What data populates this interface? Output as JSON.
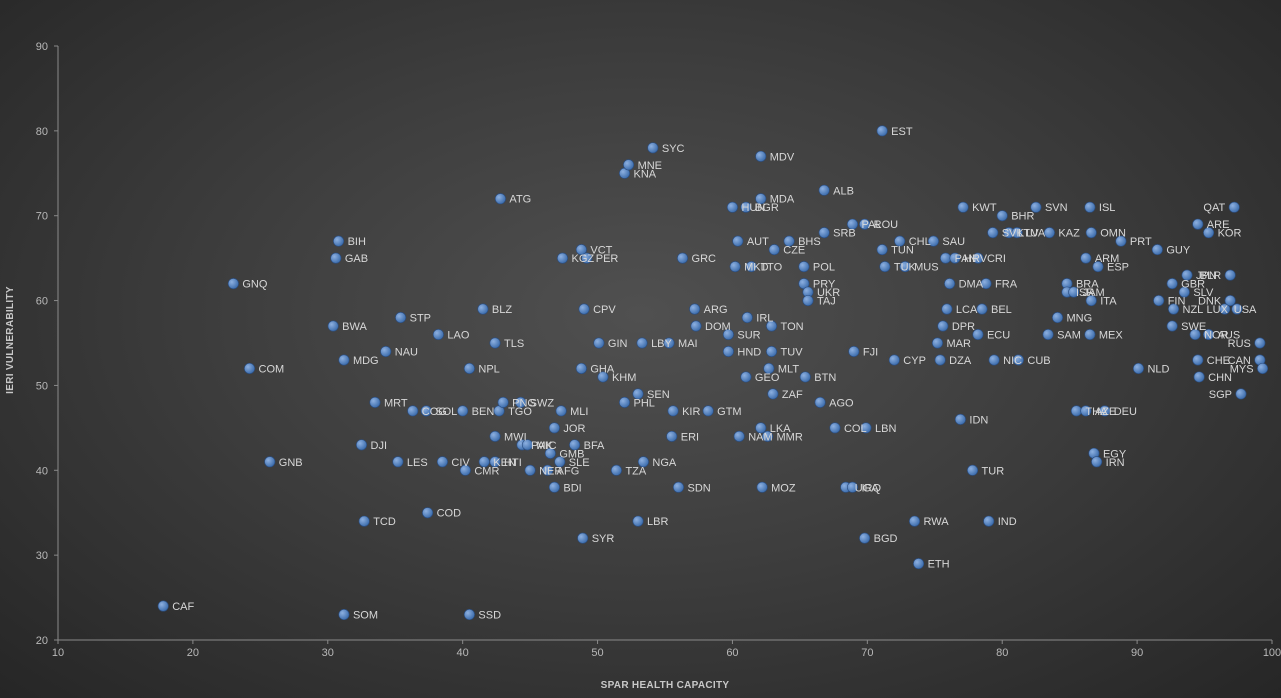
{
  "chart_data": {
    "type": "scatter",
    "title": "",
    "xlabel": "SPAR HEALTH CAPACITY",
    "ylabel": "IERI VULNERABILITY",
    "xlim": [
      10,
      100
    ],
    "ylim": [
      20,
      90
    ],
    "xticks": [
      10,
      20,
      30,
      40,
      50,
      60,
      70,
      80,
      90,
      100
    ],
    "yticks": [
      20,
      30,
      40,
      50,
      60,
      70,
      80,
      90
    ],
    "grid": false,
    "legend": "none",
    "colors": {
      "marker": "#4f81bd",
      "marker_highlight": "#8db0e0",
      "label": "#d8d8d8",
      "axis": "#8a8a8a"
    },
    "points": [
      {
        "label": "CAF",
        "x": 17.8,
        "y": 24
      },
      {
        "label": "SOM",
        "x": 31.2,
        "y": 23
      },
      {
        "label": "SSD",
        "x": 40.5,
        "y": 23
      },
      {
        "label": "GNQ",
        "x": 23,
        "y": 62
      },
      {
        "label": "COM",
        "x": 24.2,
        "y": 52
      },
      {
        "label": "GNB",
        "x": 25.7,
        "y": 41
      },
      {
        "label": "BIH",
        "x": 30.8,
        "y": 67
      },
      {
        "label": "GAB",
        "x": 30.6,
        "y": 65
      },
      {
        "label": "BWA",
        "x": 30.4,
        "y": 57
      },
      {
        "label": "MDG",
        "x": 31.2,
        "y": 53
      },
      {
        "label": "TCD",
        "x": 32.7,
        "y": 34
      },
      {
        "label": "DJI",
        "x": 32.5,
        "y": 43
      },
      {
        "label": "MRT",
        "x": 33.5,
        "y": 48
      },
      {
        "label": "STP",
        "x": 35.4,
        "y": 58
      },
      {
        "label": "NAU",
        "x": 34.3,
        "y": 54
      },
      {
        "label": "COG",
        "x": 36.3,
        "y": 47
      },
      {
        "label": "LES",
        "x": 35.2,
        "y": 41
      },
      {
        "label": "SOL",
        "x": 37.3,
        "y": 47
      },
      {
        "label": "COD",
        "x": 37.4,
        "y": 35
      },
      {
        "label": "LAO",
        "x": 38.2,
        "y": 56
      },
      {
        "label": "CIV",
        "x": 38.5,
        "y": 41
      },
      {
        "label": "NPL",
        "x": 40.5,
        "y": 52
      },
      {
        "label": "BEN",
        "x": 40,
        "y": 47
      },
      {
        "label": "CMR",
        "x": 40.2,
        "y": 40
      },
      {
        "label": "BLZ",
        "x": 41.5,
        "y": 59
      },
      {
        "label": "TLS",
        "x": 42.4,
        "y": 55
      },
      {
        "label": "KEN",
        "x": 41.6,
        "y": 41
      },
      {
        "label": "HTI",
        "x": 42.4,
        "y": 41
      },
      {
        "label": "MWI",
        "x": 42.4,
        "y": 44
      },
      {
        "label": "TGO",
        "x": 42.7,
        "y": 47
      },
      {
        "label": "PNG",
        "x": 43,
        "y": 48
      },
      {
        "label": "ATG",
        "x": 42.8,
        "y": 72
      },
      {
        "label": "SWZ",
        "x": 44.3,
        "y": 48
      },
      {
        "label": "PAK",
        "x": 44.4,
        "y": 43
      },
      {
        "label": "MIC",
        "x": 44.8,
        "y": 43
      },
      {
        "label": "NER",
        "x": 45,
        "y": 40
      },
      {
        "label": "GMB",
        "x": 46.5,
        "y": 42
      },
      {
        "label": "AFG",
        "x": 46.3,
        "y": 40
      },
      {
        "label": "SLE",
        "x": 47.2,
        "y": 41
      },
      {
        "label": "BDI",
        "x": 46.8,
        "y": 38
      },
      {
        "label": "JOR",
        "x": 46.8,
        "y": 45
      },
      {
        "label": "MLI",
        "x": 47.3,
        "y": 47
      },
      {
        "label": "GHA",
        "x": 48.8,
        "y": 52
      },
      {
        "label": "BFA",
        "x": 48.3,
        "y": 43
      },
      {
        "label": "SYR",
        "x": 48.9,
        "y": 32
      },
      {
        "label": "KGZ",
        "x": 47.4,
        "y": 65
      },
      {
        "label": "VCT",
        "x": 48.8,
        "y": 66
      },
      {
        "label": "PER",
        "x": 49.2,
        "y": 65
      },
      {
        "label": "CPV",
        "x": 49,
        "y": 59
      },
      {
        "label": "GIN",
        "x": 50.1,
        "y": 55
      },
      {
        "label": "KHM",
        "x": 50.4,
        "y": 51
      },
      {
        "label": "TZA",
        "x": 51.4,
        "y": 40
      },
      {
        "label": "PHL",
        "x": 52,
        "y": 48
      },
      {
        "label": "SEN",
        "x": 53,
        "y": 49
      },
      {
        "label": "LBR",
        "x": 53,
        "y": 34
      },
      {
        "label": "NGA",
        "x": 53.4,
        "y": 41
      },
      {
        "label": "LBY",
        "x": 53.3,
        "y": 55
      },
      {
        "label": "MAI",
        "x": 55.3,
        "y": 55
      },
      {
        "label": "KNA",
        "x": 52,
        "y": 75
      },
      {
        "label": "MNE",
        "x": 52.3,
        "y": 76
      },
      {
        "label": "SYC",
        "x": 54.1,
        "y": 78
      },
      {
        "label": "GRC",
        "x": 56.3,
        "y": 65
      },
      {
        "label": "KIR",
        "x": 55.6,
        "y": 47
      },
      {
        "label": "ERI",
        "x": 55.5,
        "y": 44
      },
      {
        "label": "SDN",
        "x": 56,
        "y": 38
      },
      {
        "label": "ARG",
        "x": 57.2,
        "y": 59
      },
      {
        "label": "DOM",
        "x": 57.3,
        "y": 57
      },
      {
        "label": "GTM",
        "x": 58.2,
        "y": 47
      },
      {
        "label": "SUR",
        "x": 59.7,
        "y": 56
      },
      {
        "label": "HND",
        "x": 59.7,
        "y": 54
      },
      {
        "label": "NAM",
        "x": 60.5,
        "y": 44
      },
      {
        "label": "GEO",
        "x": 61,
        "y": 51
      },
      {
        "label": "IRL",
        "x": 61.1,
        "y": 58
      },
      {
        "label": "HUN",
        "x": 60,
        "y": 71
      },
      {
        "label": "BGR",
        "x": 61,
        "y": 71
      },
      {
        "label": "AUT",
        "x": 60.4,
        "y": 67
      },
      {
        "label": "MKD",
        "x": 60.2,
        "y": 64
      },
      {
        "label": "TTO",
        "x": 61.4,
        "y": 64
      },
      {
        "label": "MDV",
        "x": 62.1,
        "y": 77
      },
      {
        "label": "MDA",
        "x": 62.1,
        "y": 72
      },
      {
        "label": "MOZ",
        "x": 62.2,
        "y": 38
      },
      {
        "label": "LKA",
        "x": 62.1,
        "y": 45
      },
      {
        "label": "MMR",
        "x": 62.6,
        "y": 44
      },
      {
        "label": "ZAF",
        "x": 63,
        "y": 49
      },
      {
        "label": "MLT",
        "x": 62.7,
        "y": 52
      },
      {
        "label": "TUV",
        "x": 62.9,
        "y": 54
      },
      {
        "label": "TON",
        "x": 62.9,
        "y": 57
      },
      {
        "label": "CZE",
        "x": 63.1,
        "y": 66
      },
      {
        "label": "BHS",
        "x": 64.2,
        "y": 67
      },
      {
        "label": "POL",
        "x": 65.3,
        "y": 64
      },
      {
        "label": "PRY",
        "x": 65.3,
        "y": 62
      },
      {
        "label": "UKR",
        "x": 65.6,
        "y": 61
      },
      {
        "label": "TAJ",
        "x": 65.6,
        "y": 60
      },
      {
        "label": "BTN",
        "x": 65.4,
        "y": 51
      },
      {
        "label": "AGO",
        "x": 66.5,
        "y": 48
      },
      {
        "label": "ALB",
        "x": 66.8,
        "y": 73
      },
      {
        "label": "SRB",
        "x": 66.8,
        "y": 68
      },
      {
        "label": "PAL",
        "x": 68.9,
        "y": 69
      },
      {
        "label": "ROU",
        "x": 69.8,
        "y": 69
      },
      {
        "label": "COL",
        "x": 67.6,
        "y": 45
      },
      {
        "label": "UGA",
        "x": 68.4,
        "y": 38
      },
      {
        "label": "IRQ",
        "x": 68.9,
        "y": 38
      },
      {
        "label": "FJI",
        "x": 69,
        "y": 54
      },
      {
        "label": "LBN",
        "x": 69.9,
        "y": 45
      },
      {
        "label": "BGD",
        "x": 69.8,
        "y": 32
      },
      {
        "label": "TUK",
        "x": 71.3,
        "y": 64
      },
      {
        "label": "TUN",
        "x": 71.1,
        "y": 66
      },
      {
        "label": "EST",
        "x": 71.1,
        "y": 80
      },
      {
        "label": "CHL",
        "x": 72.4,
        "y": 67
      },
      {
        "label": "CYP",
        "x": 72,
        "y": 53
      },
      {
        "label": "MUS",
        "x": 72.8,
        "y": 64
      },
      {
        "label": "RWA",
        "x": 73.5,
        "y": 34
      },
      {
        "label": "ETH",
        "x": 73.8,
        "y": 29
      },
      {
        "label": "SAU",
        "x": 74.9,
        "y": 67
      },
      {
        "label": "PAN",
        "x": 75.8,
        "y": 65
      },
      {
        "label": "DMA",
        "x": 76.1,
        "y": 62
      },
      {
        "label": "DPR",
        "x": 75.6,
        "y": 57
      },
      {
        "label": "LCA",
        "x": 75.9,
        "y": 59
      },
      {
        "label": "DZA",
        "x": 75.4,
        "y": 53
      },
      {
        "label": "MAR",
        "x": 75.2,
        "y": 55
      },
      {
        "label": "HRV",
        "x": 76.5,
        "y": 65
      },
      {
        "label": "IDN",
        "x": 76.9,
        "y": 46
      },
      {
        "label": "KWT",
        "x": 77.1,
        "y": 71
      },
      {
        "label": "TUR",
        "x": 77.8,
        "y": 40
      },
      {
        "label": "CRI",
        "x": 78.2,
        "y": 65
      },
      {
        "label": "ECU",
        "x": 78.2,
        "y": 56
      },
      {
        "label": "BEL",
        "x": 78.5,
        "y": 59
      },
      {
        "label": "FRA",
        "x": 78.8,
        "y": 62
      },
      {
        "label": "SVK",
        "x": 79.3,
        "y": 68
      },
      {
        "label": "IND",
        "x": 79,
        "y": 34
      },
      {
        "label": "BHR",
        "x": 80,
        "y": 70
      },
      {
        "label": "NIC",
        "x": 79.4,
        "y": 53
      },
      {
        "label": "LTU",
        "x": 80.5,
        "y": 68
      },
      {
        "label": "LVA",
        "x": 81.1,
        "y": 68
      },
      {
        "label": "CUB",
        "x": 81.2,
        "y": 53
      },
      {
        "label": "SVN",
        "x": 82.5,
        "y": 71
      },
      {
        "label": "KAZ",
        "x": 83.5,
        "y": 68
      },
      {
        "label": "SAM",
        "x": 83.4,
        "y": 56
      },
      {
        "label": "MNG",
        "x": 84.1,
        "y": 58
      },
      {
        "label": "BRA",
        "x": 84.8,
        "y": 62
      },
      {
        "label": "ISR",
        "x": 84.8,
        "y": 61
      },
      {
        "label": "JAM",
        "x": 85.3,
        "y": 61
      },
      {
        "label": "THA",
        "x": 85.5,
        "y": 47
      },
      {
        "label": "AZE",
        "x": 86.2,
        "y": 47
      },
      {
        "label": "ARM",
        "x": 86.2,
        "y": 65
      },
      {
        "label": "MEX",
        "x": 86.5,
        "y": 56
      },
      {
        "label": "ISL",
        "x": 86.5,
        "y": 71
      },
      {
        "label": "OMN",
        "x": 86.6,
        "y": 68
      },
      {
        "label": "ITA",
        "x": 86.6,
        "y": 60
      },
      {
        "label": "ESP",
        "x": 87.1,
        "y": 64
      },
      {
        "label": "EGY",
        "x": 86.8,
        "y": 42
      },
      {
        "label": "IRN",
        "x": 87,
        "y": 41
      },
      {
        "label": "DEU",
        "x": 87.6,
        "y": 47
      },
      {
        "label": "PRT",
        "x": 88.8,
        "y": 67
      },
      {
        "label": "NLD",
        "x": 90.1,
        "y": 52
      },
      {
        "label": "GUY",
        "x": 91.5,
        "y": 66
      },
      {
        "label": "FIN",
        "x": 91.6,
        "y": 60
      },
      {
        "label": "GBR",
        "x": 92.6,
        "y": 62
      },
      {
        "label": "NZL",
        "x": 92.7,
        "y": 59
      },
      {
        "label": "SWE",
        "x": 92.6,
        "y": 57
      },
      {
        "label": "SLV",
        "x": 93.5,
        "y": 61
      },
      {
        "label": "JPN",
        "x": 93.7,
        "y": 63
      },
      {
        "label": "NOR",
        "x": 94.3,
        "y": 56
      },
      {
        "label": "CHE",
        "x": 94.5,
        "y": 53
      },
      {
        "label": "CHN",
        "x": 94.6,
        "y": 51
      },
      {
        "label": "ARE",
        "x": 94.5,
        "y": 69
      },
      {
        "label": "KOR",
        "x": 95.3,
        "y": 68
      },
      {
        "label": "AUS",
        "x": 95.3,
        "y": 56
      },
      {
        "label": "USA",
        "x": 96.5,
        "y": 59
      },
      {
        "label": "DNK",
        "x": 96.9,
        "y": 60
      },
      {
        "label": "BLR",
        "x": 96.9,
        "y": 63
      },
      {
        "label": "QAT",
        "x": 97.2,
        "y": 71
      },
      {
        "label": "LUX",
        "x": 97.4,
        "y": 59
      },
      {
        "label": "SGP",
        "x": 97.7,
        "y": 49
      },
      {
        "label": "RUS",
        "x": 99.1,
        "y": 55
      },
      {
        "label": "CAN",
        "x": 99.1,
        "y": 53
      },
      {
        "label": "MYS",
        "x": 99.3,
        "y": 52
      }
    ]
  }
}
